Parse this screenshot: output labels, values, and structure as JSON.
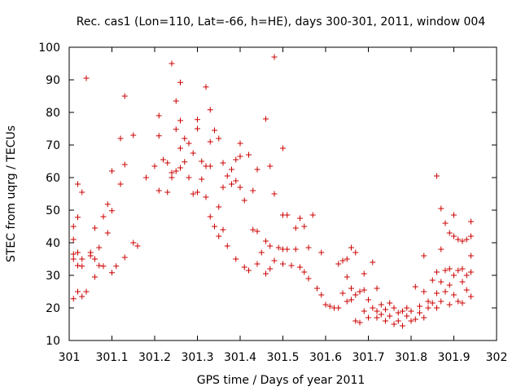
{
  "chart_data": {
    "type": "scatter",
    "title": "Rec. cas1 (Lon=110, Lat=-66, h=HE), days 300-301, 2011, window 004",
    "xlabel": "GPS time / Days of year 2011",
    "ylabel": "STEC from uqrg / TECUs",
    "xlim": [
      301,
      302
    ],
    "ylim": [
      10,
      100
    ],
    "xticks": [
      {
        "value": 301.0,
        "label": "301"
      },
      {
        "value": 301.1,
        "label": "301.1"
      },
      {
        "value": 301.2,
        "label": "301.2"
      },
      {
        "value": 301.3,
        "label": "301.3"
      },
      {
        "value": 301.4,
        "label": "301.4"
      },
      {
        "value": 301.5,
        "label": "301.5"
      },
      {
        "value": 301.6,
        "label": "301.6"
      },
      {
        "value": 301.7,
        "label": "301.7"
      },
      {
        "value": 301.8,
        "label": "301.8"
      },
      {
        "value": 301.9,
        "label": "301.9"
      },
      {
        "value": 302.0,
        "label": "302"
      }
    ],
    "yticks": [
      {
        "value": 10,
        "label": "10"
      },
      {
        "value": 20,
        "label": "20"
      },
      {
        "value": 30,
        "label": "30"
      },
      {
        "value": 40,
        "label": "40"
      },
      {
        "value": 50,
        "label": "50"
      },
      {
        "value": 60,
        "label": "60"
      },
      {
        "value": 70,
        "label": "70"
      },
      {
        "value": 80,
        "label": "80"
      },
      {
        "value": 90,
        "label": "90"
      },
      {
        "value": 100,
        "label": "100"
      }
    ],
    "grid": false,
    "marker": "+",
    "color": "#cc0000",
    "series": [
      {
        "name": "STEC",
        "points": [
          [
            301.01,
            22.8
          ],
          [
            301.01,
            36.5
          ],
          [
            301.01,
            41.0
          ],
          [
            301.01,
            45.0
          ],
          [
            301.01,
            35.0
          ],
          [
            301.02,
            25.0
          ],
          [
            301.02,
            33.0
          ],
          [
            301.02,
            37.0
          ],
          [
            301.02,
            47.8
          ],
          [
            301.02,
            58.0
          ],
          [
            301.03,
            23.5
          ],
          [
            301.03,
            32.8
          ],
          [
            301.03,
            35.0
          ],
          [
            301.03,
            55.5
          ],
          [
            301.04,
            90.5
          ],
          [
            301.04,
            25.0
          ],
          [
            301.05,
            36.0
          ],
          [
            301.05,
            37.0
          ],
          [
            301.06,
            44.5
          ],
          [
            301.06,
            29.5
          ],
          [
            301.06,
            35.0
          ],
          [
            301.07,
            33.0
          ],
          [
            301.07,
            38.5
          ],
          [
            301.08,
            48.0
          ],
          [
            301.08,
            32.8
          ],
          [
            301.09,
            51.8
          ],
          [
            301.09,
            43.0
          ],
          [
            301.1,
            30.8
          ],
          [
            301.1,
            49.8
          ],
          [
            301.1,
            62.0
          ],
          [
            301.11,
            32.8
          ],
          [
            301.12,
            58.0
          ],
          [
            301.12,
            72.0
          ],
          [
            301.13,
            85.0
          ],
          [
            301.13,
            64.0
          ],
          [
            301.13,
            35.5
          ],
          [
            301.15,
            73.0
          ],
          [
            301.15,
            40.0
          ],
          [
            301.16,
            39.0
          ],
          [
            301.18,
            60.0
          ],
          [
            301.2,
            63.5
          ],
          [
            301.21,
            79.0
          ],
          [
            301.21,
            72.8
          ],
          [
            301.21,
            56.0
          ],
          [
            301.22,
            65.5
          ],
          [
            301.23,
            64.5
          ],
          [
            301.23,
            55.5
          ],
          [
            301.24,
            95.0
          ],
          [
            301.24,
            61.5
          ],
          [
            301.24,
            60.0
          ],
          [
            301.25,
            83.5
          ],
          [
            301.25,
            74.8
          ],
          [
            301.25,
            62.0
          ],
          [
            301.26,
            89.2
          ],
          [
            301.26,
            77.5
          ],
          [
            301.26,
            69.0
          ],
          [
            301.26,
            63.0
          ],
          [
            301.27,
            72.0
          ],
          [
            301.27,
            64.8
          ],
          [
            301.28,
            70.5
          ],
          [
            301.28,
            60.0
          ],
          [
            301.29,
            67.5
          ],
          [
            301.29,
            55.0
          ],
          [
            301.3,
            77.8
          ],
          [
            301.3,
            75.0
          ],
          [
            301.3,
            55.5
          ],
          [
            301.31,
            65.0
          ],
          [
            301.31,
            59.5
          ],
          [
            301.32,
            87.8
          ],
          [
            301.32,
            63.5
          ],
          [
            301.32,
            54.0
          ],
          [
            301.33,
            80.8
          ],
          [
            301.33,
            71.0
          ],
          [
            301.33,
            63.5
          ],
          [
            301.33,
            48.0
          ],
          [
            301.34,
            45.0
          ],
          [
            301.34,
            74.5
          ],
          [
            301.35,
            72.0
          ],
          [
            301.35,
            51.0
          ],
          [
            301.35,
            42.0
          ],
          [
            301.36,
            64.5
          ],
          [
            301.36,
            57.0
          ],
          [
            301.36,
            44.0
          ],
          [
            301.37,
            60.5
          ],
          [
            301.37,
            39.0
          ],
          [
            301.38,
            62.5
          ],
          [
            301.38,
            58.0
          ],
          [
            301.39,
            65.5
          ],
          [
            301.39,
            59.0
          ],
          [
            301.39,
            35.0
          ],
          [
            301.4,
            70.5
          ],
          [
            301.4,
            66.5
          ],
          [
            301.4,
            57.0
          ],
          [
            301.41,
            32.5
          ],
          [
            301.41,
            53.0
          ],
          [
            301.42,
            67.0
          ],
          [
            301.42,
            31.5
          ],
          [
            301.43,
            56.0
          ],
          [
            301.43,
            44.0
          ],
          [
            301.44,
            43.5
          ],
          [
            301.44,
            62.5
          ],
          [
            301.44,
            33.5
          ],
          [
            301.45,
            37.0
          ],
          [
            301.46,
            78.0
          ],
          [
            301.46,
            40.5
          ],
          [
            301.46,
            30.5
          ],
          [
            301.47,
            63.5
          ],
          [
            301.47,
            39.0
          ],
          [
            301.47,
            32.0
          ],
          [
            301.48,
            97.0
          ],
          [
            301.48,
            55.0
          ],
          [
            301.48,
            34.5
          ],
          [
            301.49,
            38.5
          ],
          [
            301.5,
            69.0
          ],
          [
            301.5,
            48.5
          ],
          [
            301.5,
            38.0
          ],
          [
            301.5,
            33.5
          ],
          [
            301.51,
            48.5
          ],
          [
            301.51,
            38.0
          ],
          [
            301.52,
            33.0
          ],
          [
            301.53,
            44.5
          ],
          [
            301.53,
            38.0
          ],
          [
            301.54,
            47.5
          ],
          [
            301.54,
            32.5
          ],
          [
            301.55,
            45.0
          ],
          [
            301.55,
            31.0
          ],
          [
            301.56,
            38.5
          ],
          [
            301.56,
            29.0
          ],
          [
            301.57,
            48.5
          ],
          [
            301.58,
            26.0
          ],
          [
            301.59,
            37.0
          ],
          [
            301.59,
            24.0
          ],
          [
            301.6,
            21.0
          ],
          [
            301.61,
            20.5
          ],
          [
            301.62,
            20.0
          ],
          [
            301.63,
            33.5
          ],
          [
            301.63,
            20.0
          ],
          [
            301.64,
            34.5
          ],
          [
            301.64,
            24.5
          ],
          [
            301.65,
            35.0
          ],
          [
            301.65,
            29.5
          ],
          [
            301.65,
            22.0
          ],
          [
            301.66,
            38.5
          ],
          [
            301.66,
            26.0
          ],
          [
            301.66,
            22.5
          ],
          [
            301.67,
            16.0
          ],
          [
            301.67,
            37.0
          ],
          [
            301.67,
            24.0
          ],
          [
            301.68,
            25.0
          ],
          [
            301.68,
            15.5
          ],
          [
            301.69,
            30.5
          ],
          [
            301.69,
            25.5
          ],
          [
            301.69,
            19.0
          ],
          [
            301.7,
            22.5
          ],
          [
            301.7,
            17.0
          ],
          [
            301.71,
            34.0
          ],
          [
            301.71,
            20.0
          ],
          [
            301.72,
            19.0
          ],
          [
            301.72,
            17.0
          ],
          [
            301.72,
            26.0
          ],
          [
            301.73,
            21.0
          ],
          [
            301.73,
            18.0
          ],
          [
            301.74,
            16.0
          ],
          [
            301.74,
            19.5
          ],
          [
            301.75,
            21.5
          ],
          [
            301.75,
            17.5
          ],
          [
            301.76,
            15.0
          ],
          [
            301.76,
            20.0
          ],
          [
            301.77,
            18.5
          ],
          [
            301.77,
            16.0
          ],
          [
            301.78,
            19.0
          ],
          [
            301.78,
            14.5
          ],
          [
            301.79,
            20.0
          ],
          [
            301.79,
            17.5
          ],
          [
            301.8,
            19.0
          ],
          [
            301.8,
            16.0
          ],
          [
            301.81,
            16.5
          ],
          [
            301.81,
            26.5
          ],
          [
            301.82,
            20.5
          ],
          [
            301.82,
            18.5
          ],
          [
            301.83,
            36.0
          ],
          [
            301.83,
            25.0
          ],
          [
            301.83,
            17.0
          ],
          [
            301.84,
            22.0
          ],
          [
            301.84,
            20.0
          ],
          [
            301.85,
            28.5
          ],
          [
            301.85,
            21.5
          ],
          [
            301.86,
            60.5
          ],
          [
            301.86,
            31.0
          ],
          [
            301.86,
            24.5
          ],
          [
            301.86,
            20.0
          ],
          [
            301.87,
            50.5
          ],
          [
            301.87,
            38.0
          ],
          [
            301.87,
            28.0
          ],
          [
            301.87,
            22.0
          ],
          [
            301.88,
            46.0
          ],
          [
            301.88,
            31.5
          ],
          [
            301.88,
            25.0
          ],
          [
            301.89,
            43.0
          ],
          [
            301.89,
            32.0
          ],
          [
            301.89,
            27.0
          ],
          [
            301.89,
            21.0
          ],
          [
            301.9,
            48.5
          ],
          [
            301.9,
            42.0
          ],
          [
            301.9,
            30.0
          ],
          [
            301.9,
            24.0
          ],
          [
            301.91,
            41.0
          ],
          [
            301.91,
            31.5
          ],
          [
            301.91,
            22.0
          ],
          [
            301.92,
            40.5
          ],
          [
            301.92,
            32.0
          ],
          [
            301.92,
            28.0
          ],
          [
            301.92,
            21.5
          ],
          [
            301.93,
            41.0
          ],
          [
            301.93,
            30.0
          ],
          [
            301.93,
            25.5
          ],
          [
            301.94,
            46.5
          ],
          [
            301.94,
            42.0
          ],
          [
            301.94,
            36.0
          ],
          [
            301.94,
            31.0
          ],
          [
            301.94,
            23.5
          ]
        ]
      }
    ]
  }
}
